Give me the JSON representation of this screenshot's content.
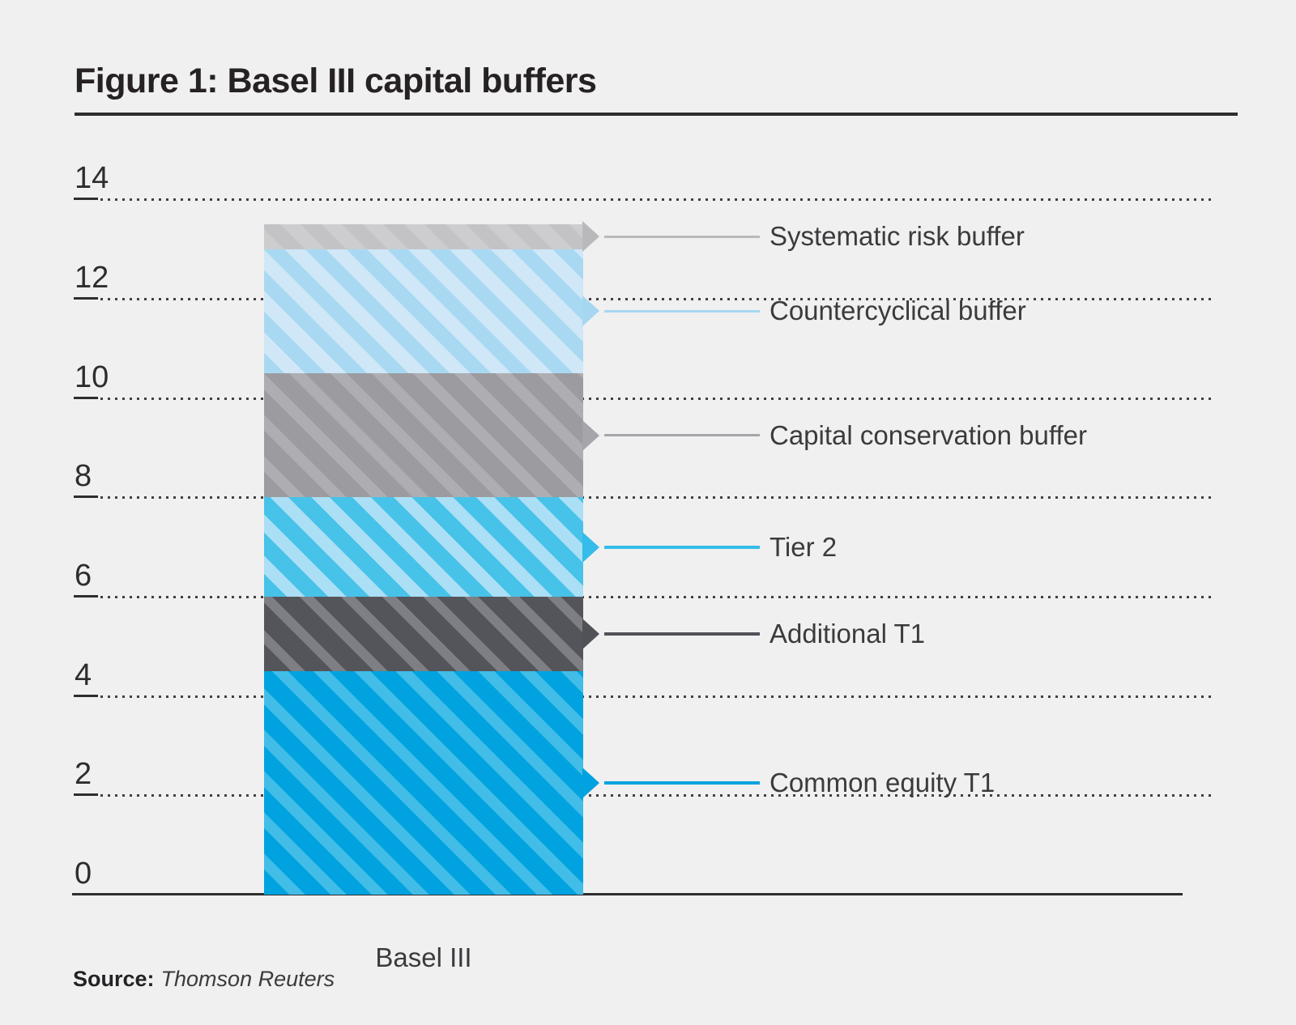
{
  "page": {
    "background": "#f0f0f1"
  },
  "header": {
    "title": "Figure 1: Basel III capital buffers"
  },
  "footer": {
    "source_label": "Source:",
    "source_text": "Thomson Reuters"
  },
  "chart_data": {
    "type": "bar",
    "stacked": true,
    "title": "Figure 1: Basel III capital buffers",
    "categories": [
      "Basel III"
    ],
    "xlabel": "Basel III",
    "ylabel": "",
    "ylim": [
      0,
      14
    ],
    "yticks": [
      0,
      2,
      4,
      6,
      8,
      10,
      12,
      14
    ],
    "grid": "dotted-horizontal",
    "stack_total": 13.5,
    "legend_position": "right-callouts",
    "series": [
      {
        "name": "Common equity T1",
        "value": 4.5,
        "range": [
          0,
          4.5
        ],
        "base_color": "#00a3df",
        "stripe_color": "#41bde8",
        "callout_color": "#00a3df"
      },
      {
        "name": "Additional T1",
        "value": 1.5,
        "range": [
          4.5,
          6
        ],
        "base_color": "#54555a",
        "stripe_color": "#7e7f84",
        "callout_color": "#515257"
      },
      {
        "name": "Tier 2",
        "value": 2.0,
        "range": [
          6,
          8
        ],
        "base_color": "#47c2e9",
        "stripe_color": "#abdff5",
        "callout_color": "#35bce9"
      },
      {
        "name": "Capital conservation buffer",
        "value": 2.5,
        "range": [
          8,
          10.5
        ],
        "base_color": "#9c9ca0",
        "stripe_color": "#aeaeb2",
        "callout_color": "#a6a6aa"
      },
      {
        "name": "Countercyclical buffer",
        "value": 2.5,
        "range": [
          10.5,
          13
        ],
        "base_color": "#a9d9f2",
        "stripe_color": "#cfe7f7",
        "callout_color": "#a6d7f0"
      },
      {
        "name": "Systematic risk buffer",
        "value": 0.5,
        "range": [
          13,
          13.5
        ],
        "base_color": "#cdcdd0",
        "stripe_color": "#c3c3c6",
        "callout_color": "#b9b9bc"
      }
    ]
  }
}
